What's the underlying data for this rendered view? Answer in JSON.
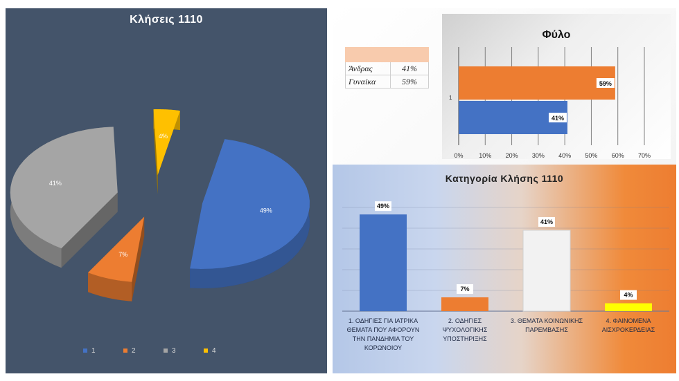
{
  "chart_data": [
    {
      "type": "pie",
      "title": "Κλήσεις 1110",
      "categories": [
        "1",
        "2",
        "3",
        "4"
      ],
      "values": [
        49,
        7,
        41,
        4
      ],
      "value_labels": [
        "49%",
        "7%",
        "41%",
        "4%"
      ],
      "colors": [
        "#4472c4",
        "#ed7d31",
        "#a5a5a5",
        "#ffc000"
      ],
      "legend": "bottom"
    },
    {
      "type": "bar",
      "orientation": "horizontal",
      "title": "Φύλο",
      "categories": [
        "1"
      ],
      "series": [
        {
          "values": [
            41
          ],
          "label": "41%",
          "color": "#4472c4"
        },
        {
          "values": [
            59
          ],
          "label": "59%",
          "color": "#ed7d31"
        }
      ],
      "xlim": [
        0,
        70
      ],
      "xticks": [
        "0%",
        "10%",
        "20%",
        "30%",
        "40%",
        "50%",
        "60%",
        "70%"
      ]
    },
    {
      "type": "bar",
      "title": "Κατηγορία Κλήσης 1110",
      "categories": [
        "1. ΟΔΗΓΙΕΣ ΓΙΑ ΙΑΤΡΙΚΑ ΘΕΜΑΤΑ ΠΟΥ ΑΦΟΡΟΥΝ ΤΗΝ ΠΑΝΔΗΜΙΑ ΤΟΥ ΚΟΡΩΝΟΙΟΥ",
        "2. ΟΔΗΓΙΕΣ ΨΥΧΟΛΟΓΙΚΗΣ ΥΠΟΣΤΗΡΙΞΗΣ",
        "3. ΘΕΜΑΤΑ ΚΟΙΝΩΝΙΚΗΣ ΠΑΡΕΜΒΑΣΗΣ",
        "4. ΦΑΙΝΟΜΕΝΑ ΑΙΣΧΡΟΚΕΡΔΕΙΑΣ"
      ],
      "values": [
        49,
        7,
        41,
        4
      ],
      "value_labels": [
        "49%",
        "7%",
        "41%",
        "4%"
      ],
      "colors": [
        "#4472c4",
        "#ed7d31",
        "#f2f2f2",
        "#ffff00"
      ],
      "ylim": [
        0,
        55
      ]
    }
  ],
  "gender_table": {
    "rows": [
      {
        "label": "Άνδρας",
        "value": "41%"
      },
      {
        "label": "Γυναίκα",
        "value": "59%"
      }
    ]
  }
}
